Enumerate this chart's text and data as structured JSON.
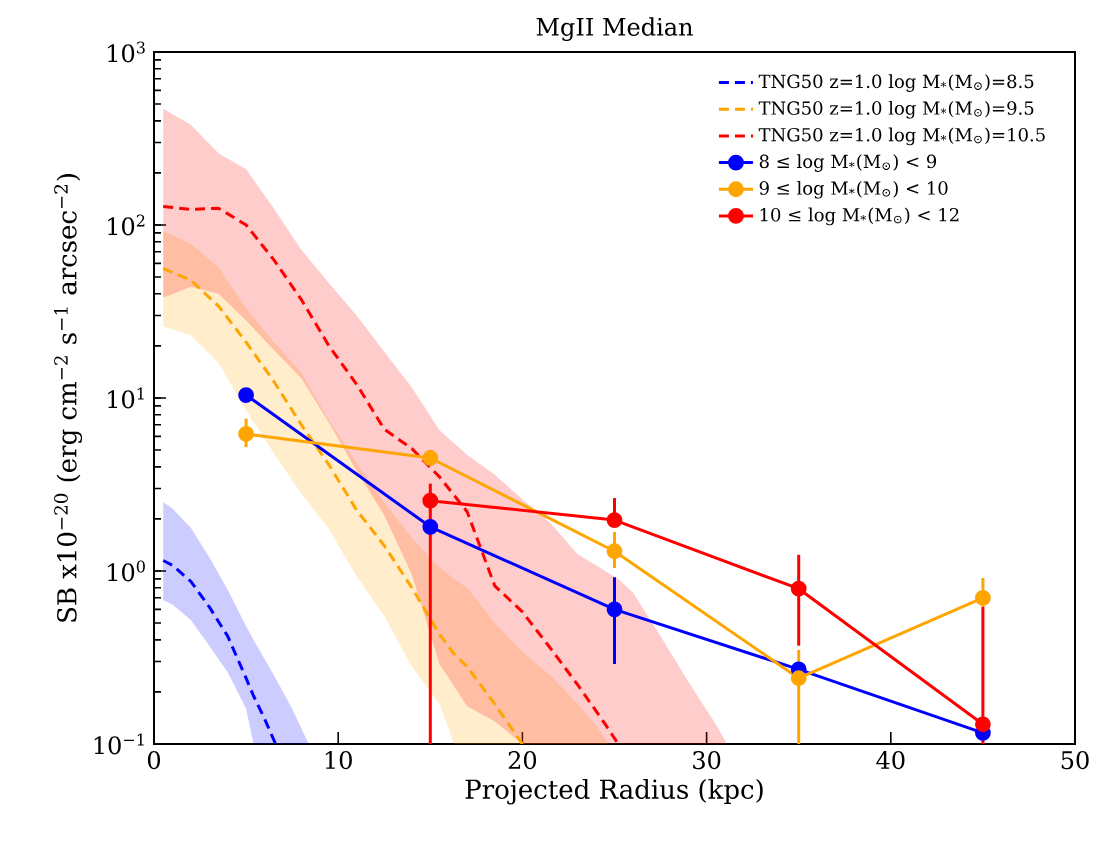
{
  "chart_data": {
    "type": "line",
    "title": "MgII Median",
    "xlabel": "Projected Radius (kpc)",
    "ylabel": "SB x10$^{−20}$ (erg cm$^{−2}$ s$^{−1}$ arcsec$^{−2}$)",
    "xlim": [
      0,
      50
    ],
    "ylim": [
      0.1,
      1000
    ],
    "xticks": [
      0,
      10,
      20,
      30,
      40,
      50
    ],
    "yticks": [
      {
        "value": 0.1,
        "label": "10$^{−1}$"
      },
      {
        "value": 1,
        "label": "10$^{0}$"
      },
      {
        "value": 10,
        "label": "10$^{1}$"
      },
      {
        "value": 100,
        "label": "10$^{2}$"
      },
      {
        "value": 1000,
        "label": "10$^{3}$"
      }
    ],
    "log": "y",
    "legend": "top right",
    "series": [
      {
        "name": "TNG50 z=1.0 log M$_{*}$(M$_{⊙}$)=8.5",
        "color": "#0000ff",
        "line_style": "dashed",
        "marker": "none",
        "x": [
          0.5,
          1,
          2,
          3,
          4,
          5,
          5.4,
          6,
          6.6,
          7.5,
          8.4
        ],
        "values": [
          1.15,
          1.08,
          0.87,
          0.62,
          0.42,
          0.24,
          0.19,
          0.14,
          0.1,
          null,
          null
        ],
        "upper": [
          2.5,
          2.3,
          1.78,
          1.2,
          0.78,
          0.48,
          0.4,
          0.31,
          0.24,
          0.16,
          0.1
        ],
        "lower": [
          0.68,
          0.64,
          0.52,
          0.37,
          0.26,
          0.16,
          0.1,
          0.1,
          0.1,
          0.1,
          0.1
        ]
      },
      {
        "name": "TNG50 z=1.0 log M$_{*}$(M$_{⊙}$)=9.5",
        "color": "#ffa500",
        "line_style": "dashed",
        "marker": "none",
        "x": [
          0.5,
          2,
          3.5,
          5,
          6.5,
          8,
          9.5,
          11,
          12.5,
          14,
          15.5,
          16.3,
          17,
          18.5,
          20,
          21.5,
          23,
          24.2,
          24.7
        ],
        "values": [
          56,
          48,
          34,
          21,
          12.5,
          7,
          4.1,
          2.25,
          1.4,
          0.8,
          0.43,
          0.33,
          0.28,
          0.17,
          0.1,
          null,
          null,
          null,
          null
        ],
        "upper": [
          92,
          78,
          57,
          33,
          21,
          14,
          7.4,
          4.2,
          2.5,
          1.55,
          1.05,
          0.9,
          0.8,
          0.5,
          0.34,
          0.25,
          0.17,
          0.12,
          0.1
        ],
        "lower": [
          26,
          23,
          16,
          8.5,
          4.8,
          2.8,
          1.75,
          0.93,
          0.55,
          0.28,
          0.17,
          0.1,
          0.1,
          0.1,
          0.1,
          0.1,
          0.1,
          0.1,
          0.1
        ]
      },
      {
        "name": "TNG50 z=1.0 log M$_{*}$(M$_{⊙}$)=10.5",
        "color": "#ff0000",
        "line_style": "dashed",
        "marker": "none",
        "x": [
          0.5,
          2,
          3.5,
          5,
          6.5,
          8,
          9.5,
          11,
          12.5,
          14,
          15.5,
          17,
          18.5,
          20,
          21.5,
          23,
          24.5,
          25.2,
          26,
          27.5,
          29,
          30.5,
          31.1
        ],
        "values": [
          128,
          123,
          125,
          100,
          63,
          37,
          20,
          12,
          6.6,
          5.1,
          3.5,
          2.2,
          0.82,
          0.58,
          0.36,
          0.22,
          0.13,
          0.1,
          null,
          null,
          null,
          null,
          null
        ],
        "upper": [
          470,
          380,
          260,
          210,
          125,
          72,
          46,
          30,
          18.5,
          11.5,
          6.5,
          4.7,
          3.6,
          2.6,
          1.9,
          1.25,
          1.0,
          0.9,
          0.75,
          0.42,
          0.23,
          0.13,
          0.1
        ],
        "lower": [
          38,
          44,
          40,
          28,
          19,
          13,
          7.2,
          3.8,
          2.1,
          0.95,
          0.29,
          0.165,
          0.135,
          0.1,
          0.1,
          0.1,
          0.1,
          0.1,
          0.1,
          0.1,
          0.1,
          0.1,
          0.1
        ]
      },
      {
        "name": "8 ≤ log M$_{*}$(M$_{⊙}$) < 9",
        "color": "#0000ff",
        "line_style": "solid",
        "marker": "circle",
        "x": [
          5,
          15,
          25,
          35,
          45
        ],
        "values": [
          10.4,
          1.8,
          0.6,
          0.27,
          0.116
        ],
        "errors": [
          null,
          null,
          [
            0.29,
            0.92
          ],
          null,
          null
        ]
      },
      {
        "name": "9 ≤ log M$_{*}$(M$_{⊙}$) < 10",
        "color": "#ffa500",
        "line_style": "solid",
        "marker": "circle",
        "x": [
          5,
          15,
          25,
          35,
          45
        ],
        "values": [
          6.2,
          4.5,
          1.3,
          0.24,
          0.7
        ],
        "errors": [
          [
            5.2,
            7.6
          ],
          [
            4.1,
            5.0
          ],
          [
            1.04,
            1.68
          ],
          [
            0.1,
            0.35
          ],
          [
            0.62,
            0.91
          ]
        ]
      },
      {
        "name": "10 ≤ log M$_{*}$(M$_{⊙}$) < 12",
        "color": "#ff0000",
        "line_style": "solid",
        "marker": "circle",
        "x": [
          15,
          25,
          35,
          45
        ],
        "values": [
          2.55,
          1.97,
          0.79,
          0.13
        ],
        "errors": [
          [
            0.1,
            3.2
          ],
          [
            1.97,
            2.64
          ],
          [
            0.37,
            1.24
          ],
          [
            0.1,
            0.62
          ]
        ]
      }
    ]
  }
}
